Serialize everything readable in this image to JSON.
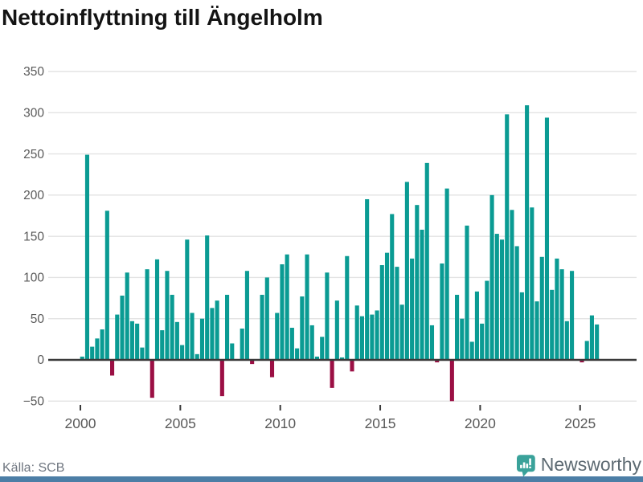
{
  "title": "Nettoinflyttning till Ängelholm",
  "source": "Källa: SCB",
  "brand": {
    "name": "Newsworthy",
    "icon": "newsworthy-speech-bubble-bar-chart-icon",
    "icon_color": "#3aa29a",
    "text_color": "#5d6a72"
  },
  "colors": {
    "positive_bar": "#0a9b93",
    "negative_bar": "#9b0f44",
    "gridline": "#e3e3e3",
    "zero_axis": "#3a3a3a",
    "tick_label": "#595959",
    "title_text": "#141414",
    "source_text": "#6f7680",
    "bottom_strip": "#4c7ea6"
  },
  "chart_data": {
    "type": "bar",
    "title": "Nettoinflyttning till Ängelholm",
    "xlabel": "",
    "ylabel": "",
    "x_unit": "quarter",
    "x_tick_years": [
      2000,
      2005,
      2010,
      2015,
      2020,
      2025
    ],
    "y_ticks": [
      350,
      300,
      250,
      200,
      150,
      100,
      50,
      0,
      -50
    ],
    "ylim": [
      -50,
      350
    ],
    "grid": true,
    "years": [
      {
        "year": 2000,
        "values": [
          4,
          249,
          16,
          26
        ]
      },
      {
        "year": 2001,
        "values": [
          37,
          181,
          -19,
          55
        ]
      },
      {
        "year": 2002,
        "values": [
          78,
          106,
          47,
          44
        ]
      },
      {
        "year": 2003,
        "values": [
          15,
          110,
          -46,
          122
        ]
      },
      {
        "year": 2004,
        "values": [
          36,
          108,
          79,
          46
        ]
      },
      {
        "year": 2005,
        "values": [
          18,
          146,
          57,
          7
        ]
      },
      {
        "year": 2006,
        "values": [
          50,
          151,
          63,
          72
        ]
      },
      {
        "year": 2007,
        "values": [
          -44,
          79,
          20,
          0
        ]
      },
      {
        "year": 2008,
        "values": [
          38,
          108,
          -5,
          0
        ]
      },
      {
        "year": 2009,
        "values": [
          79,
          100,
          -21,
          57
        ]
      },
      {
        "year": 2010,
        "values": [
          116,
          128,
          39,
          14
        ]
      },
      {
        "year": 2011,
        "values": [
          77,
          128,
          42,
          4
        ]
      },
      {
        "year": 2012,
        "values": [
          28,
          106,
          -34,
          72
        ]
      },
      {
        "year": 2013,
        "values": [
          3,
          126,
          -14,
          66
        ]
      },
      {
        "year": 2014,
        "values": [
          53,
          195,
          55,
          60
        ]
      },
      {
        "year": 2015,
        "values": [
          115,
          130,
          177,
          113
        ]
      },
      {
        "year": 2016,
        "values": [
          67,
          216,
          123,
          188
        ]
      },
      {
        "year": 2017,
        "values": [
          158,
          239,
          42,
          -3
        ]
      },
      {
        "year": 2018,
        "values": [
          117,
          208,
          -50,
          79
        ]
      },
      {
        "year": 2019,
        "values": [
          50,
          163,
          22,
          83
        ]
      },
      {
        "year": 2020,
        "values": [
          44,
          96,
          200,
          153
        ]
      },
      {
        "year": 2021,
        "values": [
          146,
          298,
          182,
          138
        ]
      },
      {
        "year": 2022,
        "values": [
          82,
          309,
          185,
          71
        ]
      },
      {
        "year": 2023,
        "values": [
          125,
          294,
          85,
          123
        ]
      },
      {
        "year": 2024,
        "values": [
          110,
          47,
          108,
          0
        ]
      },
      {
        "year": 2025,
        "values": [
          -3,
          23,
          54,
          43
        ]
      }
    ]
  }
}
